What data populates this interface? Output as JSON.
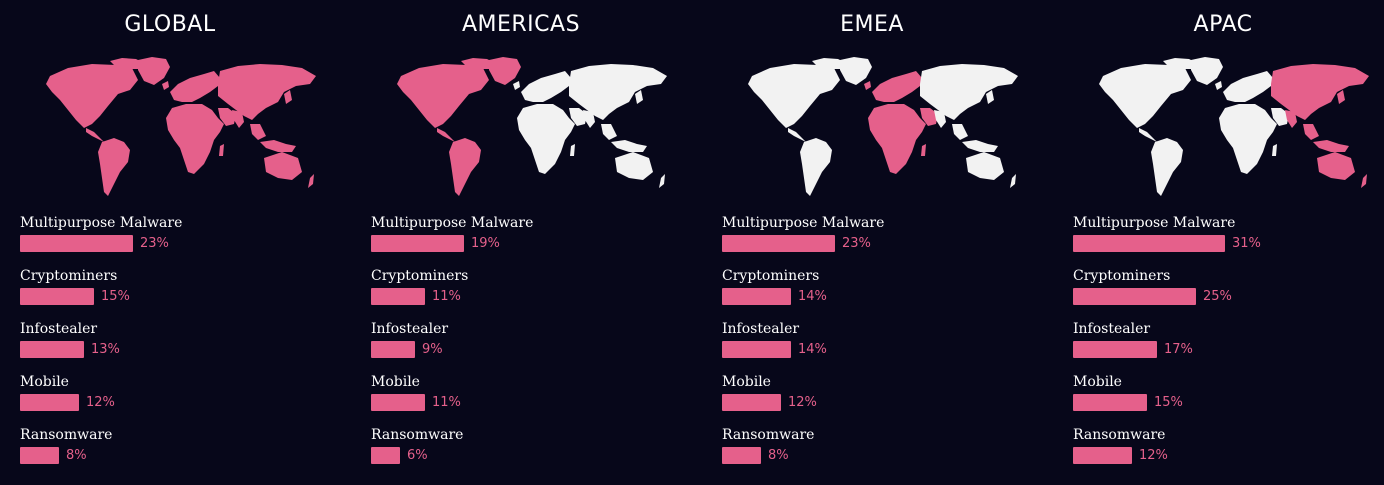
{
  "colors": {
    "background": "#07071a",
    "highlight": "#e5608b",
    "inactive_land": "#f2f2f2",
    "text": "#ffffff"
  },
  "chart_data": [
    {
      "type": "bar",
      "orientation": "horizontal",
      "title": "GLOBAL",
      "highlighted_regions": [
        "americas",
        "emea",
        "apac"
      ],
      "categories": [
        "Multipurpose Malware",
        "Cryptominers",
        "Infostealer",
        "Mobile",
        "Ransomware"
      ],
      "values": [
        23,
        15,
        13,
        12,
        8
      ],
      "value_labels": [
        "23%",
        "15%",
        "13%",
        "12%",
        "8%"
      ]
    },
    {
      "type": "bar",
      "orientation": "horizontal",
      "title": "AMERICAS",
      "highlighted_regions": [
        "americas"
      ],
      "categories": [
        "Multipurpose Malware",
        "Cryptominers",
        "Infostealer",
        "Mobile",
        "Ransomware"
      ],
      "values": [
        19,
        11,
        9,
        11,
        6
      ],
      "value_labels": [
        "19%",
        "11%",
        "9%",
        "11%",
        "6%"
      ]
    },
    {
      "type": "bar",
      "orientation": "horizontal",
      "title": "EMEA",
      "highlighted_regions": [
        "emea"
      ],
      "categories": [
        "Multipurpose Malware",
        "Cryptominers",
        "Infostealer",
        "Mobile",
        "Ransomware"
      ],
      "values": [
        23,
        14,
        14,
        12,
        8
      ],
      "value_labels": [
        "23%",
        "14%",
        "14%",
        "12%",
        "8%"
      ]
    },
    {
      "type": "bar",
      "orientation": "horizontal",
      "title": "APAC",
      "highlighted_regions": [
        "apac"
      ],
      "categories": [
        "Multipurpose Malware",
        "Cryptominers",
        "Infostealer",
        "Mobile",
        "Ransomware"
      ],
      "values": [
        31,
        25,
        17,
        15,
        12
      ],
      "value_labels": [
        "31%",
        "25%",
        "17%",
        "15%",
        "12%"
      ]
    }
  ]
}
